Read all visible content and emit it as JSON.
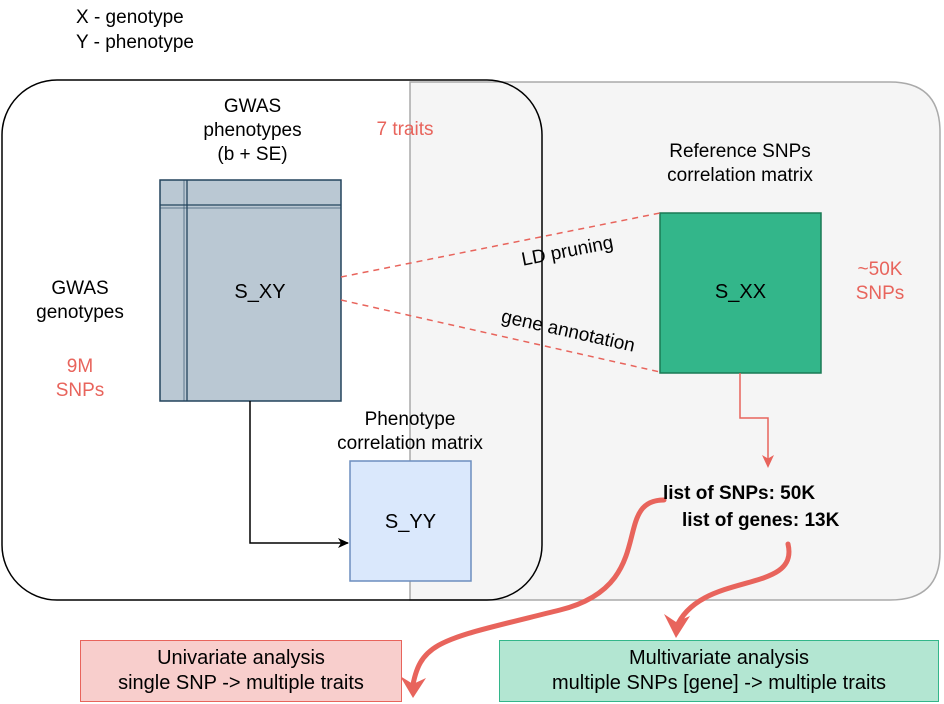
{
  "legend": {
    "x_def": "X - genotype",
    "y_def": "Y - phenotype"
  },
  "gwas_phenotypes": {
    "line1": "GWAS",
    "line2": "phenotypes",
    "line3": "(b + SE)"
  },
  "traits_count": "7 traits",
  "gwas_genotypes": {
    "line1": "GWAS",
    "line2": "genotypes"
  },
  "snp_count_gwas": {
    "line1": "9M",
    "line2": "SNPs"
  },
  "matrices": {
    "s_xy": "S_XY",
    "s_yy": "S_YY",
    "s_xx": "S_XX"
  },
  "phenotype_corr": {
    "line1": "Phenotype",
    "line2": "correlation matrix"
  },
  "reference_corr": {
    "line1": "Reference SNPs",
    "line2": "correlation matrix"
  },
  "snp_count_ref": {
    "line1": "~50K",
    "line2": "SNPs"
  },
  "edge_labels": {
    "ld_pruning": "LD pruning",
    "gene_annotation": "gene annotation"
  },
  "lists": {
    "snps": "list of SNPs: 50K",
    "genes": "list of genes: 13K"
  },
  "outputs": {
    "univariate": {
      "line1": "Univariate analysis",
      "line2": "single SNP -> multiple traits"
    },
    "multivariate": {
      "line1": "Multivariate analysis",
      "line2": "multiple SNPs [gene] -> multiple traits"
    }
  },
  "colors": {
    "accent_red": "#e8645c",
    "s_xy_fill": "#bac8d3",
    "s_xy_stroke": "#23445d",
    "s_xx_fill": "#33b68a",
    "s_xx_stroke": "#1a7a55",
    "s_yy_fill": "#dae8fc",
    "s_yy_stroke": "#6c8ebf",
    "univariate_fill": "#f8cecc",
    "univariate_stroke": "#e8645c",
    "multivariate_fill": "#b3e6d2",
    "multivariate_stroke": "#33b68a",
    "reference_panel_fill": "#f5f5f5"
  }
}
